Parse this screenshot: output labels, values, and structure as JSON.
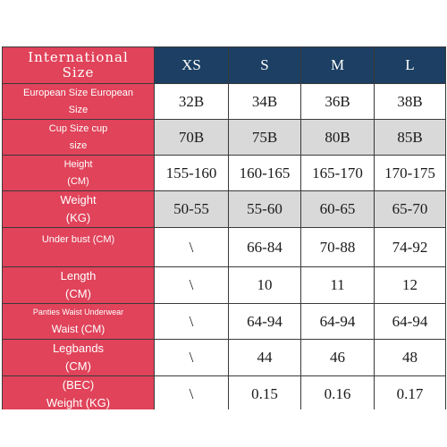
{
  "header": {
    "label_line1": "International",
    "label_line2": "Size",
    "sizes": [
      "XS",
      "S",
      "M",
      "L"
    ]
  },
  "rows": [
    {
      "label_line1": "European Size European",
      "label_line2": "Size",
      "values": [
        "32B",
        "34B",
        "36B",
        "38B"
      ]
    },
    {
      "label_line1": "Cup Size cup",
      "label_line2": "size",
      "values": [
        "70B",
        "75B",
        "80B",
        "85B"
      ]
    },
    {
      "label_line1": "Height",
      "label_line2": "(CM)",
      "values": [
        "155-160",
        "160-165",
        "165-170",
        "170-175"
      ]
    },
    {
      "label_line1": "Weight",
      "label_line2": "(KG)",
      "values": [
        "50-55",
        "55-60",
        "60-65",
        "65-70"
      ]
    },
    {
      "label_line1": "Under bust (CM)",
      "label_line2": "",
      "values": [
        "\\",
        "66-84",
        "70-88",
        "74-92"
      ]
    },
    {
      "label_line1": "Length",
      "label_line2": "(CM)",
      "values": [
        "\\",
        "10",
        "11",
        "12"
      ]
    },
    {
      "label_line1": "Panties Waist Underwear",
      "label_line2": "Waist (CM)",
      "values": [
        "\\",
        "64-94",
        "64-94",
        "64-94"
      ]
    },
    {
      "label_line1": "Legbands",
      "label_line2": "(CM)",
      "values": [
        "\\",
        "44",
        "46",
        "48"
      ]
    },
    {
      "label_line1": "(BEC)",
      "label_line2": "Weight (KG)",
      "values": [
        "\\",
        "0.15",
        "0.16",
        "0.17"
      ]
    }
  ],
  "colors": {
    "label_bg": "#e0435a",
    "header_size_bg": "#1c3f63",
    "gray_row_bg": "#d9d9d9"
  }
}
